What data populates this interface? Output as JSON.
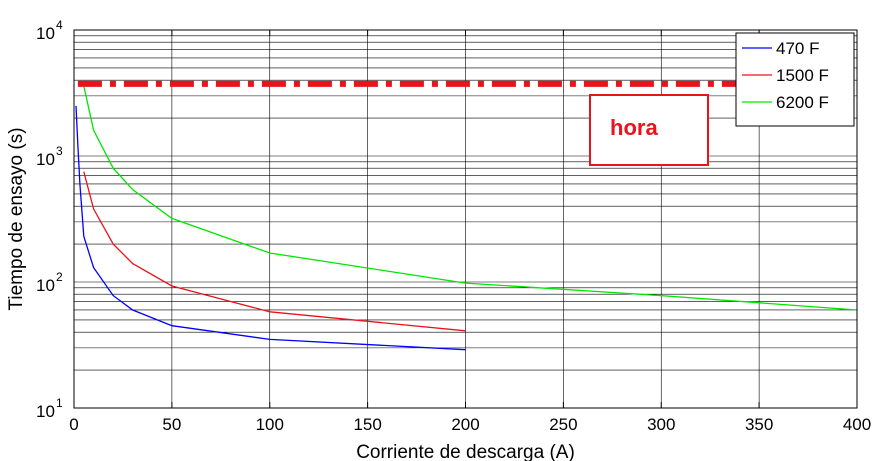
{
  "chart_data": {
    "type": "line",
    "xlabel": "Corriente de descarga (A)",
    "ylabel": "Tiempo de ensayo (s)",
    "xlim": [
      0,
      400
    ],
    "ylim": [
      10,
      10000
    ],
    "yscale": "log",
    "grid": true,
    "legend_position": "top-right",
    "x_ticks": [
      "0",
      "50",
      "100",
      "150",
      "200",
      "250",
      "300",
      "350",
      "400"
    ],
    "y_ticks": [
      {
        "base": "10",
        "exp": "1",
        "value": 10
      },
      {
        "base": "10",
        "exp": "2",
        "value": 100
      },
      {
        "base": "10",
        "exp": "3",
        "value": 1000
      },
      {
        "base": "10",
        "exp": "4",
        "value": 10000
      }
    ],
    "series": [
      {
        "name": "470 F",
        "color": "#0000ff",
        "points": [
          [
            1,
            2500
          ],
          [
            2,
            1200
          ],
          [
            3,
            600
          ],
          [
            5,
            230
          ],
          [
            10,
            130
          ],
          [
            20,
            78
          ],
          [
            30,
            60
          ],
          [
            50,
            45
          ],
          [
            100,
            35
          ],
          [
            200,
            29
          ]
        ]
      },
      {
        "name": "1500 F",
        "color": "#e8141c",
        "points": [
          [
            5,
            750
          ],
          [
            10,
            380
          ],
          [
            20,
            200
          ],
          [
            30,
            140
          ],
          [
            50,
            93
          ],
          [
            100,
            58
          ],
          [
            200,
            41
          ]
        ]
      },
      {
        "name": "6200 F",
        "color": "#00e600",
        "points": [
          [
            5,
            3600
          ],
          [
            10,
            1600
          ],
          [
            20,
            800
          ],
          [
            30,
            540
          ],
          [
            50,
            320
          ],
          [
            100,
            170
          ],
          [
            200,
            98
          ],
          [
            300,
            78
          ],
          [
            400,
            60
          ]
        ]
      }
    ],
    "reference_line": {
      "y": 3600,
      "color": "#e8141c",
      "style": "dash-dot"
    },
    "annotation": {
      "text": "hora",
      "color": "#e8141c"
    }
  }
}
